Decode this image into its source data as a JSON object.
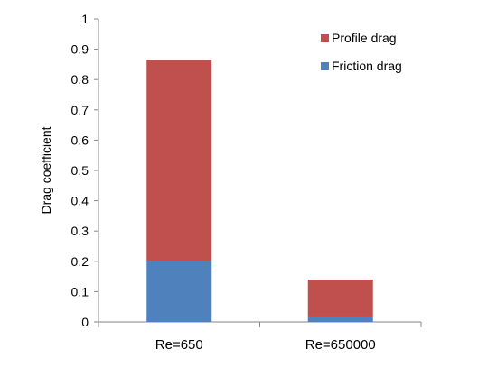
{
  "chart_data": {
    "type": "bar",
    "stacked": true,
    "categories": [
      "Re=650",
      "Re=650000"
    ],
    "series": [
      {
        "name": "Friction drag",
        "values": [
          0.2,
          0.015
        ],
        "color": "#4f81bd"
      },
      {
        "name": "Profile drag",
        "values": [
          0.665,
          0.125
        ],
        "color": "#c0504d"
      }
    ],
    "title": "",
    "xlabel": "",
    "ylabel": "Drag coefficient",
    "ylim": [
      0,
      1
    ],
    "yticks": [
      "0",
      "0.1",
      "0.2",
      "0.3",
      "0.4",
      "0.5",
      "0.6",
      "0.7",
      "0.8",
      "0.9",
      "1"
    ],
    "grid": false,
    "legend_position": "top-right",
    "legend_order": [
      "Profile drag",
      "Friction drag"
    ]
  }
}
